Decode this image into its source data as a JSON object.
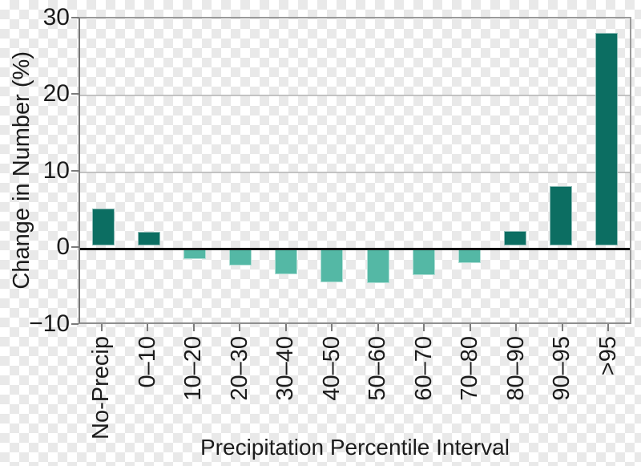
{
  "chart_data": {
    "type": "bar",
    "title": "",
    "xlabel": "Precipitation Percentile Interval",
    "ylabel": "Change in Number (%)",
    "categories": [
      "No-Precip",
      "0–10",
      "10–20",
      "20–30",
      "30–40",
      "40–50",
      "50–60",
      "60–70",
      "70–80",
      "80–90",
      "90–95",
      ">95"
    ],
    "values": [
      4.8,
      1.8,
      -1.4,
      -2.2,
      -3.4,
      -4.4,
      -4.5,
      -3.5,
      -1.9,
      1.9,
      7.7,
      27.8
    ],
    "ylim": [
      -10,
      30
    ],
    "yticks": [
      30,
      20,
      10,
      0,
      -10
    ],
    "ytick_labels": [
      "30",
      "20",
      "10",
      "0",
      "−10"
    ],
    "gridlines_at": [
      10,
      20
    ],
    "zero_line": true,
    "legend": "none",
    "bar_color_positive": "#0c6e62",
    "bar_color_negative": "#54b8a5"
  },
  "colors": {
    "frame": "#9a9a9a",
    "gridline": "#c2c2c2",
    "zero_line": "#111111",
    "tick": "#7c7c7c",
    "text": "#1c1c1c",
    "checker_light": "#ffffff",
    "checker_gray": "#e9e9e9"
  }
}
